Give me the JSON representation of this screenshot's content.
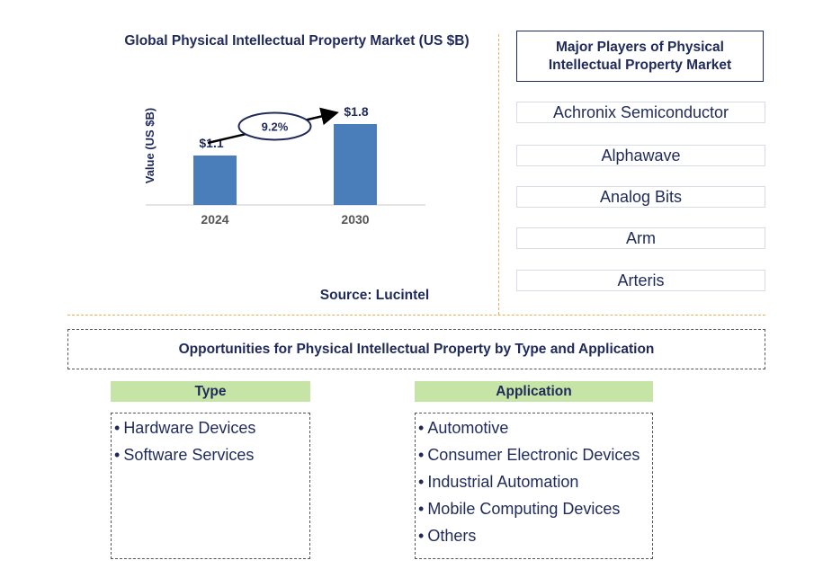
{
  "chart_data": {
    "type": "bar",
    "title": "Global Physical Intellectual Property Market (US $B)",
    "ylabel": "Value (US $B)",
    "xlabel": "",
    "categories": [
      "2024",
      "2030"
    ],
    "values": [
      1.1,
      1.8
    ],
    "data_labels": [
      "$1.1",
      "$1.8"
    ],
    "ylim": [
      0,
      2.0
    ],
    "bar_color": "#4a7ebb",
    "annotation": {
      "text": "9.2%",
      "kind": "cagr-ellipse-arrow"
    },
    "grid": false,
    "legend": "none"
  },
  "source": "Source: Lucintel",
  "players": {
    "title_line1": "Major Players of Physical",
    "title_line2": "Intellectual Property Market",
    "items": [
      "Achronix Semiconductor",
      "Alphawave",
      "Analog Bits",
      "Arm",
      "Arteris"
    ]
  },
  "opportunities": {
    "title": "Opportunities for Physical Intellectual Property by Type and Application",
    "type": {
      "header": "Type",
      "items": [
        "Hardware Devices",
        "Software Services"
      ]
    },
    "application": {
      "header": "Application",
      "items": [
        "Automotive",
        "Consumer Electronic Devices",
        "Industrial Automation",
        "Mobile Computing Devices",
        "Others"
      ]
    }
  },
  "colors": {
    "text": "#1f2a5a",
    "bar": "#4a7ebb",
    "header_green": "#c6e4a6",
    "divider": "#e0b35a"
  },
  "bullet": "•"
}
